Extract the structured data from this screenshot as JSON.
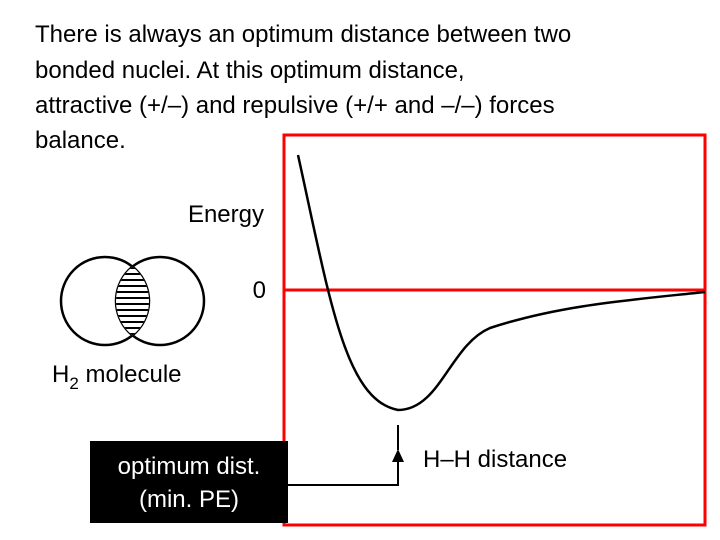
{
  "paragraph": {
    "lines": [
      "There is always an optimum distance between two",
      "bonded nuclei.  At this optimum distance,",
      "attractive (+/–) and repulsive (+/+ and –/–) forces",
      "balance."
    ]
  },
  "graph": {
    "y_label": "Energy",
    "zero_label": "0",
    "x_label": "H–H distance"
  },
  "molecule": {
    "symbol": "H",
    "subscript": "2",
    "word": " molecule"
  },
  "callout": {
    "lines": [
      "optimum dist.",
      "(min. PE)"
    ]
  }
}
